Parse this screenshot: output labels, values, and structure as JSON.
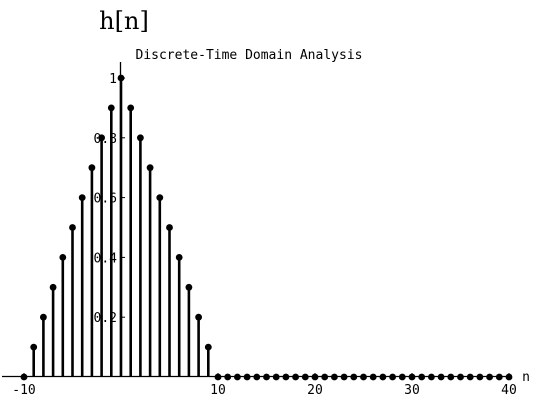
{
  "chart_data": {
    "type": "scatter",
    "style": "stem",
    "title": "h[n]",
    "subtitle": "Discrete-Time Domain Analysis",
    "xlabel": "n",
    "ylabel": "",
    "xlim": [
      -10,
      40
    ],
    "ylim": [
      0,
      1
    ],
    "x_ticks": [
      -10,
      10,
      20,
      30,
      40
    ],
    "x_tick_labels": [
      "-10",
      "10",
      "20",
      "30",
      "40"
    ],
    "y_ticks": [
      0.2,
      0.4,
      0.6,
      0.8,
      1
    ],
    "y_tick_labels": [
      "0.2",
      "0.4",
      "0.6",
      "0.8",
      "1"
    ],
    "grid": false,
    "legend": "none",
    "series": [
      {
        "x": [
          -10,
          -9,
          -8,
          -7,
          -6,
          -5,
          -4,
          -3,
          -2,
          -1,
          0,
          1,
          2,
          3,
          4,
          5,
          6,
          7,
          8,
          9,
          10,
          11,
          12,
          13,
          14,
          15,
          16,
          17,
          18,
          19,
          20,
          21,
          22,
          23,
          24,
          25,
          26,
          27,
          28,
          29,
          30,
          31,
          32,
          33,
          34,
          35,
          36,
          37,
          38,
          39,
          40
        ],
        "values": [
          0,
          0.1,
          0.2,
          0.3,
          0.4,
          0.5,
          0.6,
          0.7,
          0.8,
          0.9,
          1,
          0.9,
          0.8,
          0.7,
          0.6,
          0.5,
          0.4,
          0.3,
          0.2,
          0.1,
          0,
          0,
          0,
          0,
          0,
          0,
          0,
          0,
          0,
          0,
          0,
          0,
          0,
          0,
          0,
          0,
          0,
          0,
          0,
          0,
          0,
          0,
          0,
          0,
          0,
          0,
          0,
          0,
          0,
          0,
          0
        ]
      }
    ]
  }
}
